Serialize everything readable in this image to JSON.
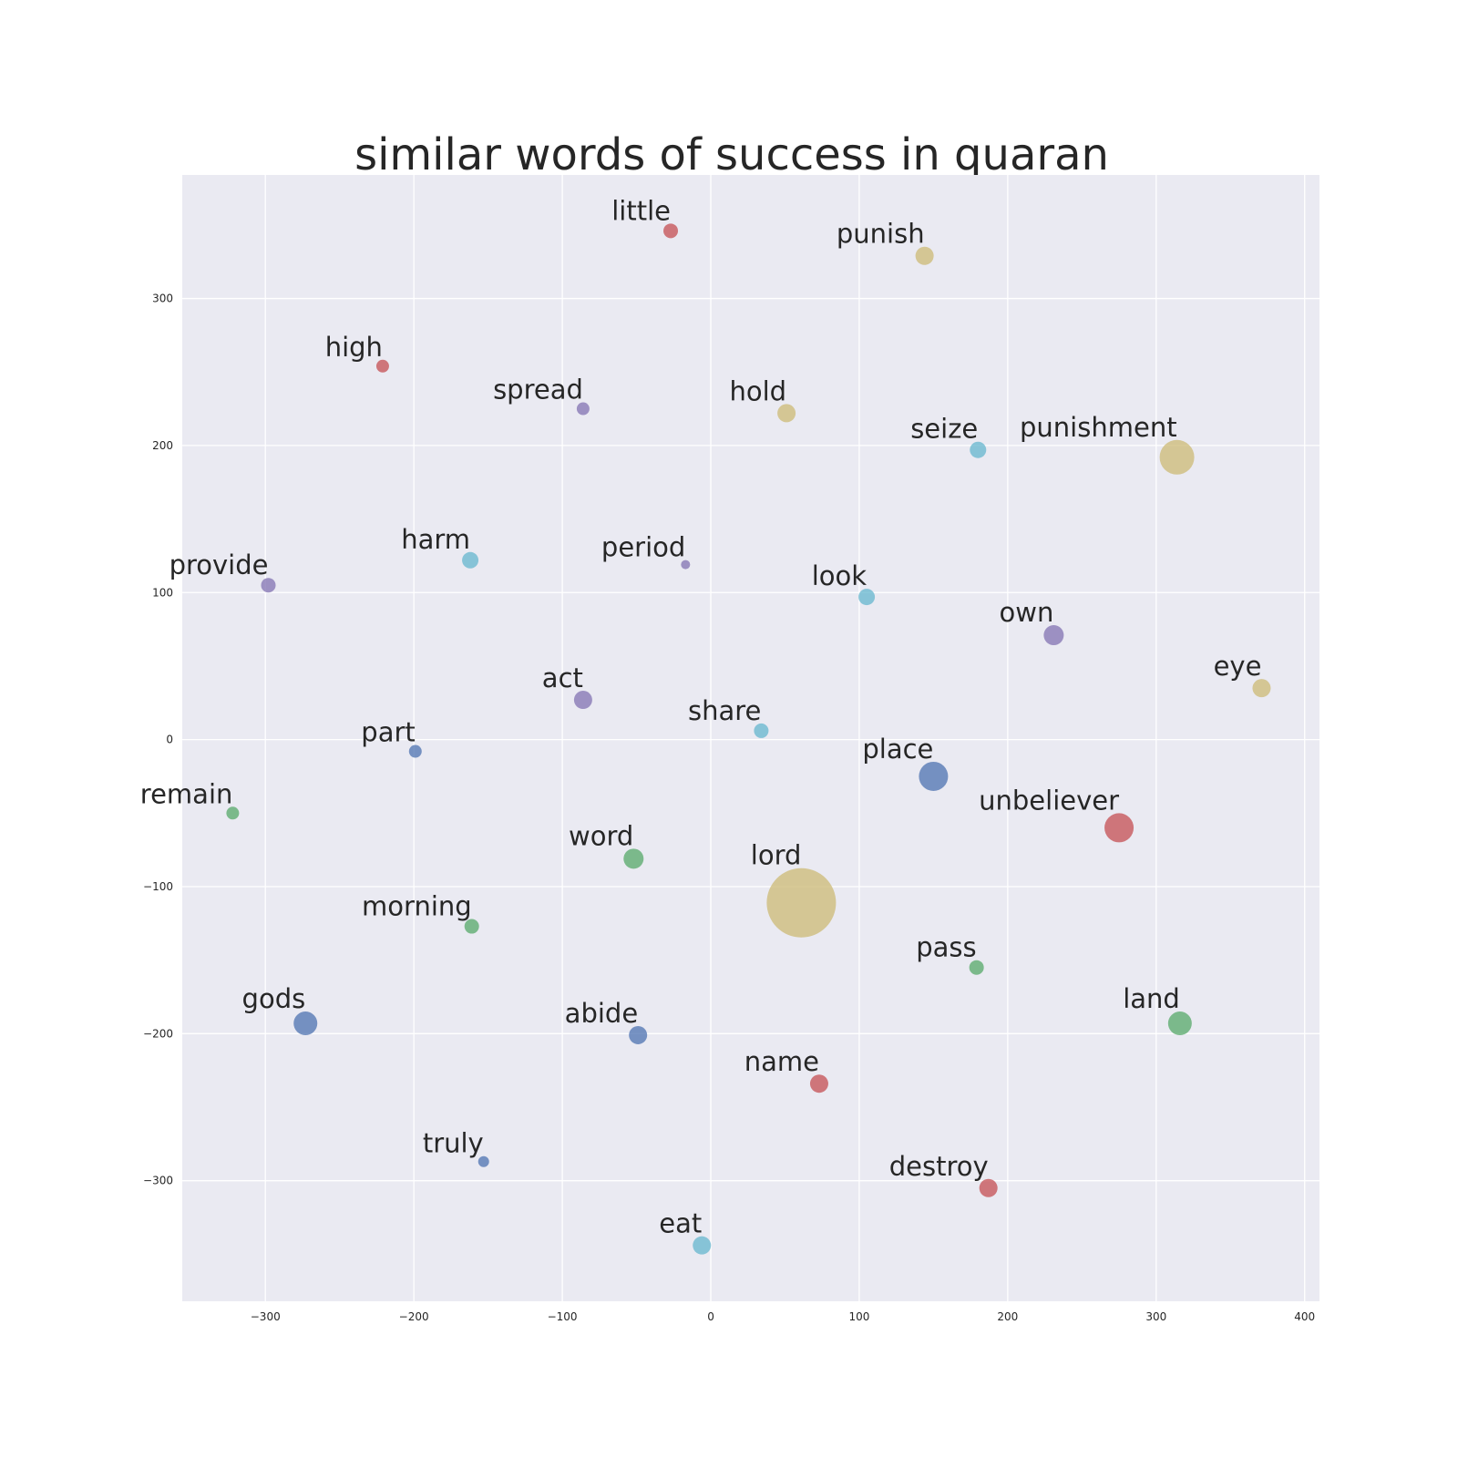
{
  "chart_data": {
    "type": "scatter",
    "title": "similar words of success in quaran",
    "xlabel": "",
    "ylabel": "",
    "xlim": [
      -356,
      410
    ],
    "ylim": [
      -382,
      384
    ],
    "xticks": [
      -300,
      -200,
      -100,
      0,
      100,
      200,
      300,
      400
    ],
    "yticks": [
      -300,
      -200,
      -100,
      0,
      100,
      200,
      300
    ],
    "grid": true,
    "legend": "none",
    "colors": {
      "background": "#ffffff",
      "plot_bg": "#eaeaf2",
      "grid": "#ffffff",
      "text": "#262626",
      "red": "#c44e52",
      "tan": "#ccb974",
      "purple": "#8172b2",
      "blue": "#4c72b0",
      "cyan": "#64b5cd",
      "green": "#55a868"
    },
    "points": [
      {
        "label": "little",
        "x": -27,
        "y": 346,
        "size": 8,
        "color": "red"
      },
      {
        "label": "punish",
        "x": 144,
        "y": 329,
        "size": 10,
        "color": "tan"
      },
      {
        "label": "high",
        "x": -221,
        "y": 254,
        "size": 7,
        "color": "red"
      },
      {
        "label": "spread",
        "x": -86,
        "y": 225,
        "size": 7,
        "color": "purple"
      },
      {
        "label": "hold",
        "x": 51,
        "y": 222,
        "size": 10,
        "color": "tan"
      },
      {
        "label": "seize",
        "x": 180,
        "y": 197,
        "size": 9,
        "color": "cyan"
      },
      {
        "label": "punishment",
        "x": 314,
        "y": 192,
        "size": 19,
        "color": "tan"
      },
      {
        "label": "harm",
        "x": -162,
        "y": 122,
        "size": 9,
        "color": "cyan"
      },
      {
        "label": "period",
        "x": -17,
        "y": 119,
        "size": 5,
        "color": "purple"
      },
      {
        "label": "provide",
        "x": -298,
        "y": 105,
        "size": 8,
        "color": "purple"
      },
      {
        "label": "look",
        "x": 105,
        "y": 97,
        "size": 9,
        "color": "cyan"
      },
      {
        "label": "own",
        "x": 231,
        "y": 71,
        "size": 11,
        "color": "purple"
      },
      {
        "label": "eye",
        "x": 371,
        "y": 35,
        "size": 10,
        "color": "tan"
      },
      {
        "label": "act",
        "x": -86,
        "y": 27,
        "size": 10,
        "color": "purple"
      },
      {
        "label": "share",
        "x": 34,
        "y": 6,
        "size": 8,
        "color": "cyan"
      },
      {
        "label": "part",
        "x": -199,
        "y": -8,
        "size": 7,
        "color": "blue"
      },
      {
        "label": "place",
        "x": 150,
        "y": -25,
        "size": 16,
        "color": "blue"
      },
      {
        "label": "remain",
        "x": -322,
        "y": -50,
        "size": 7,
        "color": "green"
      },
      {
        "label": "unbeliever",
        "x": 275,
        "y": -60,
        "size": 16,
        "color": "red"
      },
      {
        "label": "word",
        "x": -52,
        "y": -81,
        "size": 11,
        "color": "green"
      },
      {
        "label": "lord",
        "x": 61,
        "y": -111,
        "size": 38,
        "color": "tan"
      },
      {
        "label": "morning",
        "x": -161,
        "y": -127,
        "size": 8,
        "color": "green"
      },
      {
        "label": "pass",
        "x": 179,
        "y": -155,
        "size": 8,
        "color": "green"
      },
      {
        "label": "gods",
        "x": -273,
        "y": -193,
        "size": 13,
        "color": "blue"
      },
      {
        "label": "land",
        "x": 316,
        "y": -193,
        "size": 13,
        "color": "green"
      },
      {
        "label": "abide",
        "x": -49,
        "y": -201,
        "size": 10,
        "color": "blue"
      },
      {
        "label": "name",
        "x": 73,
        "y": -234,
        "size": 10,
        "color": "red"
      },
      {
        "label": "truly",
        "x": -153,
        "y": -287,
        "size": 6,
        "color": "blue"
      },
      {
        "label": "destroy",
        "x": 187,
        "y": -305,
        "size": 10,
        "color": "red"
      },
      {
        "label": "eat",
        "x": -6,
        "y": -344,
        "size": 10,
        "color": "cyan"
      }
    ]
  }
}
